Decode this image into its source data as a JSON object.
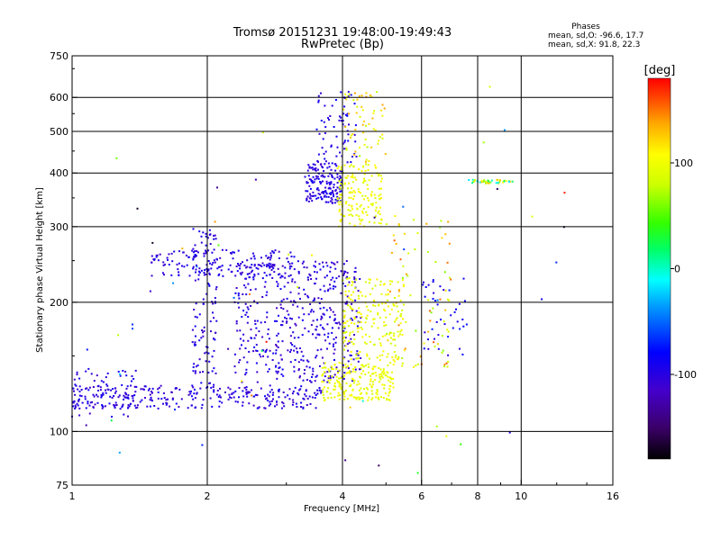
{
  "title": {
    "line1": "Tromsø 20151231 19:48:00-19:49:43",
    "line2": "RwPretec (Bp)"
  },
  "stats": {
    "heading": "Phases",
    "o_line": "mean, sd,O: -96.6, 17.7",
    "x_line": "mean, sd,X:  91.8, 22.3"
  },
  "chart_data": {
    "type": "scatter",
    "xlabel": "Frequency [MHz]",
    "ylabel": "Stationary phase Virtual Height [km]",
    "xscale": "log",
    "yscale": "log",
    "xlim": [
      1,
      16
    ],
    "ylim": [
      75,
      750
    ],
    "xticks": [
      1,
      2,
      4,
      6,
      8,
      10,
      16
    ],
    "yticks": [
      75,
      100,
      200,
      300,
      400,
      500,
      600,
      750
    ],
    "xgrid": [
      2,
      4,
      6,
      8,
      10
    ],
    "ygrid": [
      100,
      200,
      300,
      400,
      500,
      600
    ],
    "colorbar": {
      "label": "[deg]",
      "range": [
        -180,
        180
      ],
      "ticks": [
        100,
        0,
        -100
      ]
    },
    "clusters": [
      {
        "name": "o-low-trace",
        "n": 260,
        "x": [
          1.0,
          3.6
        ],
        "y": [
          113,
          128
        ],
        "phase": [
          -120,
          -85
        ]
      },
      {
        "name": "o-bottom-edge",
        "n": 90,
        "x": [
          1.0,
          1.4
        ],
        "y": [
          108,
          140
        ],
        "phase": [
          -115,
          -85
        ]
      },
      {
        "name": "o-mid-250",
        "n": 150,
        "x": [
          1.5,
          3.2
        ],
        "y": [
          230,
          265
        ],
        "phase": [
          -115,
          -85
        ]
      },
      {
        "name": "o-vertical-2",
        "n": 120,
        "x": [
          1.85,
          2.1
        ],
        "y": [
          125,
          300
        ],
        "phase": [
          -115,
          -85
        ]
      },
      {
        "name": "o-middle-block",
        "n": 480,
        "x": [
          2.3,
          4.4
        ],
        "y": [
          130,
          250
        ],
        "phase": [
          -120,
          -85
        ]
      },
      {
        "name": "o-high-380",
        "n": 160,
        "x": [
          3.3,
          4.0
        ],
        "y": [
          340,
          420
        ],
        "phase": [
          -115,
          -85
        ]
      },
      {
        "name": "o-spread-top",
        "n": 70,
        "x": [
          3.5,
          4.3
        ],
        "y": [
          420,
          620
        ],
        "phase": [
          -110,
          -80
        ]
      },
      {
        "name": "x-low",
        "n": 220,
        "x": [
          3.6,
          5.2
        ],
        "y": [
          118,
          145
        ],
        "phase": [
          85,
          110
        ]
      },
      {
        "name": "x-mid",
        "n": 200,
        "x": [
          4.0,
          5.5
        ],
        "y": [
          145,
          230
        ],
        "phase": [
          80,
          115
        ]
      },
      {
        "name": "x-high",
        "n": 160,
        "x": [
          3.9,
          4.9
        ],
        "y": [
          300,
          420
        ],
        "phase": [
          85,
          115
        ]
      },
      {
        "name": "x-upper",
        "n": 60,
        "x": [
          4.0,
          5.0
        ],
        "y": [
          420,
          620
        ],
        "phase": [
          70,
          140
        ]
      },
      {
        "name": "x-upper-right",
        "n": 80,
        "x": [
          5.0,
          7.0
        ],
        "y": [
          140,
          320
        ],
        "phase": [
          60,
          160
        ]
      },
      {
        "name": "line-380",
        "n": 40,
        "x": [
          7.6,
          9.6
        ],
        "y": [
          378,
          386
        ],
        "phase": [
          -20,
          130
        ]
      },
      {
        "name": "o-scatter-7",
        "n": 40,
        "x": [
          6.0,
          7.6
        ],
        "y": [
          150,
          230
        ],
        "phase": [
          -110,
          -70
        ]
      },
      {
        "name": "sparse-high",
        "n": 60,
        "x": [
          1.0,
          13.0
        ],
        "y": [
          80,
          650
        ],
        "phase": [
          -180,
          180
        ]
      }
    ]
  }
}
